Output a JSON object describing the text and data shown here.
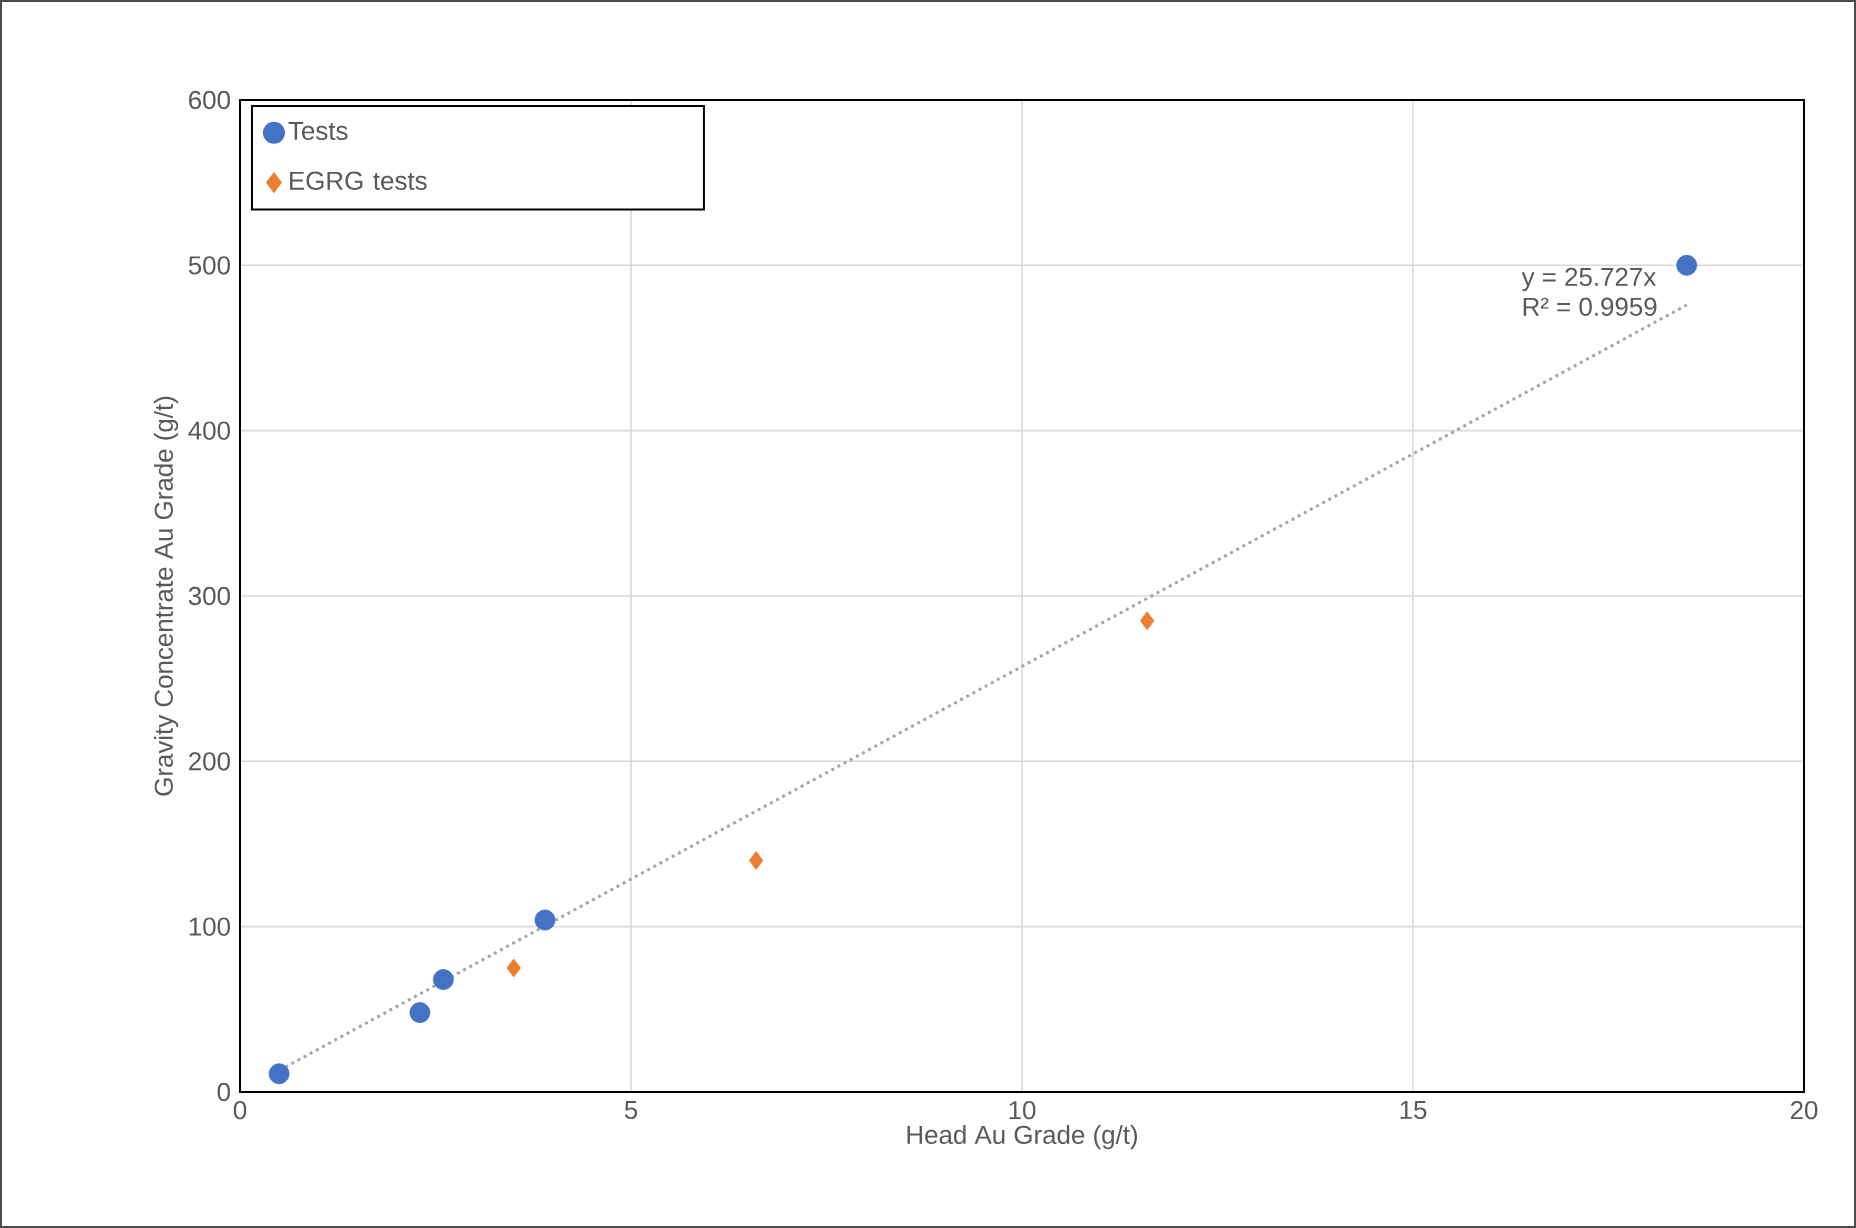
{
  "chart_data": {
    "type": "scatter",
    "xlabel": "Head Au Grade (g/t)",
    "ylabel": "Gravity Concentrate Au Grade (g/t)",
    "xlim": [
      0,
      20
    ],
    "xticks": [
      0,
      5,
      10,
      15,
      20
    ],
    "ylim": [
      0,
      600
    ],
    "yticks": [
      0,
      100,
      200,
      300,
      400,
      500,
      600
    ],
    "grid": true,
    "legend": "top left",
    "series": [
      {
        "name": "Tests",
        "color": "#4472c4",
        "marker": "circle",
        "x": [
          0.5,
          2.3,
          2.6,
          3.9,
          18.5
        ],
        "values": [
          11,
          48,
          68,
          104,
          500
        ]
      },
      {
        "name": "EGRG tests",
        "color": "#ed7d31",
        "marker": "diamond",
        "x": [
          3.5,
          6.6,
          11.6
        ],
        "values": [
          75,
          140,
          285
        ]
      },
      {
        "type": "line",
        "color": "#a5a5a5",
        "line_style": "dotted",
        "marker": "none",
        "x": [
          0.5,
          18.5
        ],
        "values": [
          13,
          476
        ]
      }
    ],
    "annotations": [
      "y = 25.727x",
      "R² = 0.9959"
    ]
  }
}
